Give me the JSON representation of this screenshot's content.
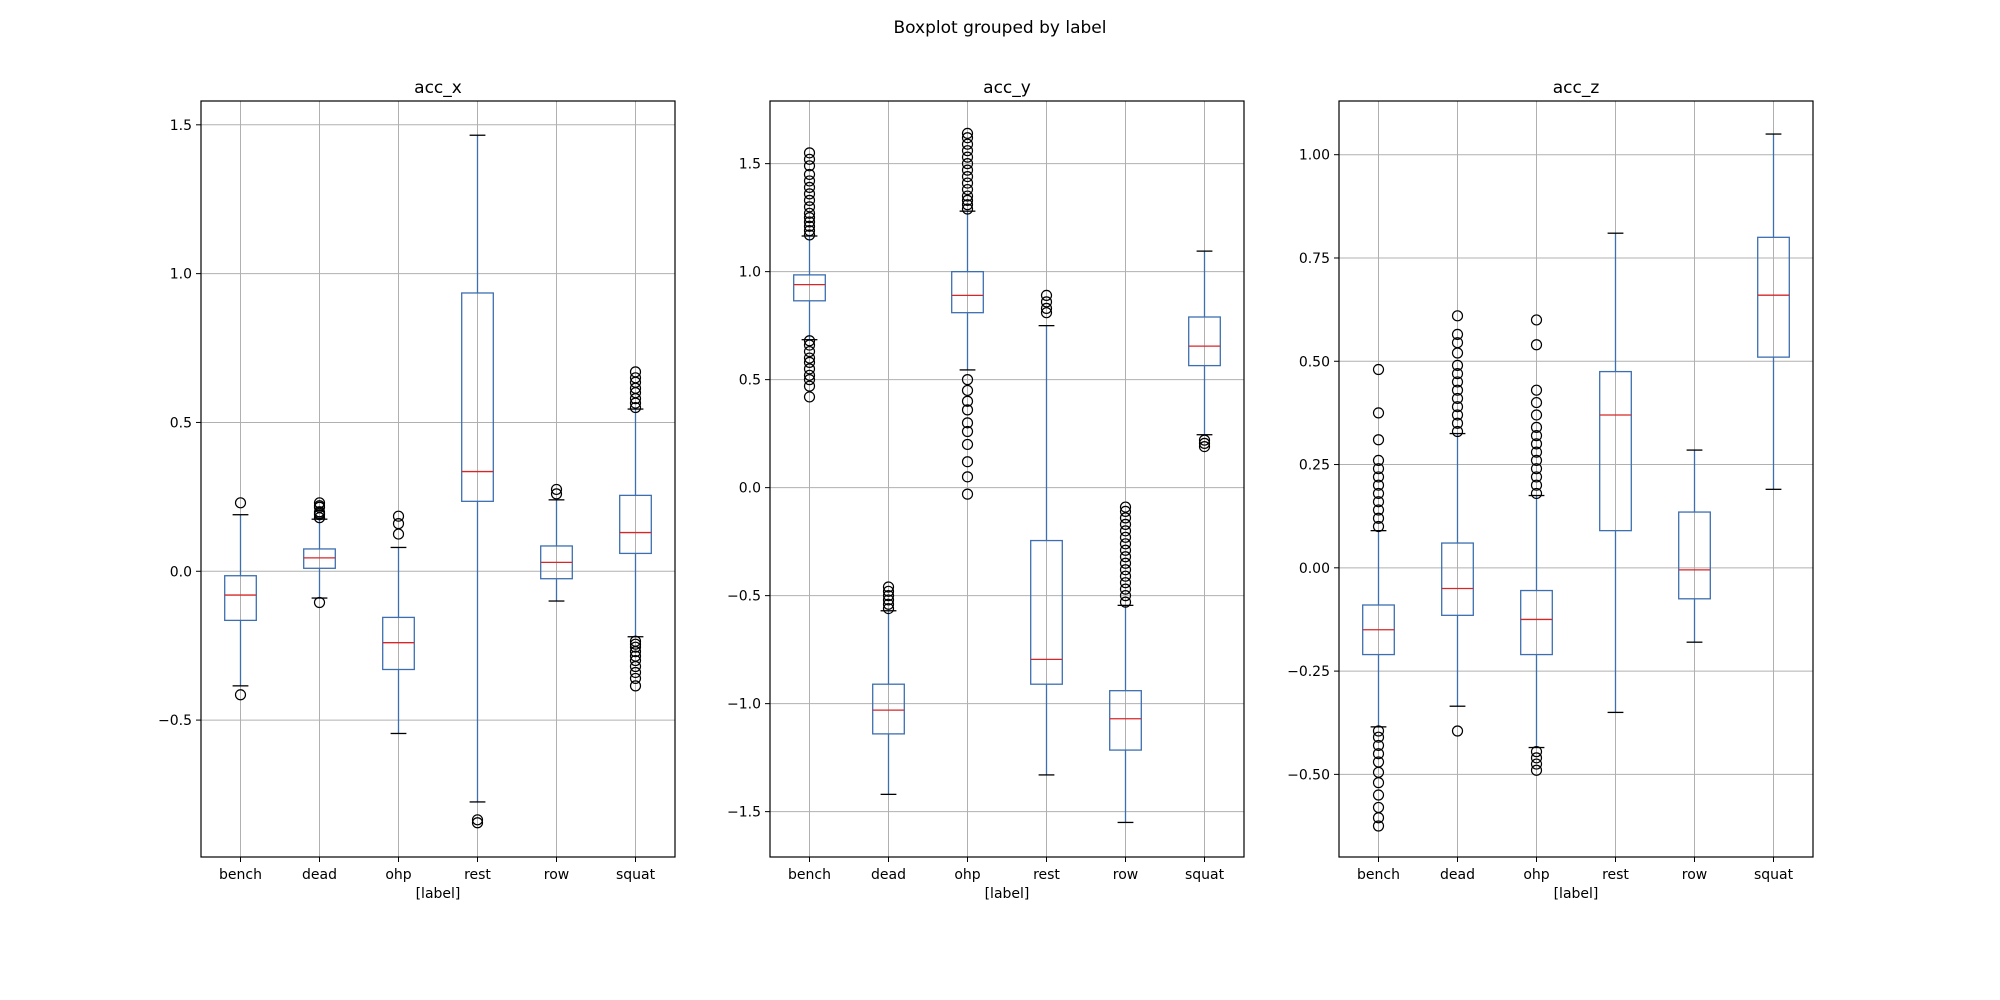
{
  "figure": {
    "suptitle": "Boxplot grouped by label"
  },
  "style": {
    "box_color": "#3d6fb0",
    "median_color": "#d62728",
    "cap_color": "#000000",
    "flier_color": "#000000",
    "grid_color": "#b0b0b0"
  },
  "chart_data": [
    {
      "type": "box",
      "title": "acc_x",
      "xlabel": "[label]",
      "ylabel": "",
      "categories": [
        "bench",
        "dead",
        "ohp",
        "rest",
        "row",
        "squat"
      ],
      "ylim": [
        -0.96,
        1.58
      ],
      "yticks": [
        {
          "value": -0.5,
          "label": "−0.5"
        },
        {
          "value": 0.0,
          "label": "0.0"
        },
        {
          "value": 0.5,
          "label": "0.5"
        },
        {
          "value": 1.0,
          "label": "1.0"
        },
        {
          "value": 1.5,
          "label": "1.5"
        }
      ],
      "grid": true,
      "boxes": [
        {
          "whislo": -0.385,
          "q1": -0.165,
          "med": -0.08,
          "q3": -0.015,
          "whishi": 0.19,
          "fliers": [
            -0.415,
            0.23
          ]
        },
        {
          "whislo": -0.09,
          "q1": 0.01,
          "med": 0.045,
          "q3": 0.075,
          "whishi": 0.175,
          "fliers": [
            -0.105,
            0.18,
            0.19,
            0.195,
            0.2,
            0.215,
            0.22,
            0.23
          ]
        },
        {
          "whislo": -0.545,
          "q1": -0.33,
          "med": -0.24,
          "q3": -0.155,
          "whishi": 0.08,
          "fliers": [
            0.125,
            0.16,
            0.185
          ]
        },
        {
          "whislo": -0.775,
          "q1": 0.235,
          "med": 0.335,
          "q3": 0.935,
          "whishi": 1.465,
          "fliers": [
            -0.835,
            -0.845
          ]
        },
        {
          "whislo": -0.1,
          "q1": -0.025,
          "med": 0.03,
          "q3": 0.085,
          "whishi": 0.24,
          "fliers": [
            0.26,
            0.275
          ]
        },
        {
          "whislo": -0.22,
          "q1": 0.06,
          "med": 0.13,
          "q3": 0.255,
          "whishi": 0.545,
          "fliers": [
            -0.385,
            -0.36,
            -0.34,
            -0.32,
            -0.3,
            -0.285,
            -0.27,
            -0.255,
            -0.245,
            -0.235,
            0.55,
            0.565,
            0.58,
            0.6,
            0.615,
            0.635,
            0.65,
            0.67
          ]
        }
      ]
    },
    {
      "type": "box",
      "title": "acc_y",
      "xlabel": "[label]",
      "ylabel": "",
      "categories": [
        "bench",
        "dead",
        "ohp",
        "rest",
        "row",
        "squat"
      ],
      "ylim": [
        -1.71,
        1.79
      ],
      "yticks": [
        {
          "value": -1.5,
          "label": "−1.5"
        },
        {
          "value": -1.0,
          "label": "−1.0"
        },
        {
          "value": -0.5,
          "label": "−0.5"
        },
        {
          "value": 0.0,
          "label": "0.0"
        },
        {
          "value": 0.5,
          "label": "0.5"
        },
        {
          "value": 1.0,
          "label": "1.0"
        },
        {
          "value": 1.5,
          "label": "1.5"
        }
      ],
      "grid": true,
      "boxes": [
        {
          "whislo": 0.685,
          "q1": 0.865,
          "med": 0.94,
          "q3": 0.985,
          "whishi": 1.165,
          "fliers": [
            0.42,
            0.47,
            0.5,
            0.52,
            0.55,
            0.58,
            0.6,
            0.63,
            0.66,
            0.68,
            1.17,
            1.19,
            1.21,
            1.23,
            1.25,
            1.27,
            1.3,
            1.33,
            1.36,
            1.39,
            1.42,
            1.45,
            1.49,
            1.52,
            1.55
          ]
        },
        {
          "whislo": -1.42,
          "q1": -1.14,
          "med": -1.03,
          "q3": -0.91,
          "whishi": -0.57,
          "fliers": [
            -0.56,
            -0.54,
            -0.52,
            -0.5,
            -0.48,
            -0.46
          ]
        },
        {
          "whislo": 0.545,
          "q1": 0.81,
          "med": 0.89,
          "q3": 1.0,
          "whishi": 1.28,
          "fliers": [
            -0.03,
            0.05,
            0.12,
            0.2,
            0.26,
            0.3,
            0.36,
            0.4,
            0.45,
            0.5,
            1.29,
            1.31,
            1.33,
            1.35,
            1.38,
            1.41,
            1.44,
            1.47,
            1.5,
            1.53,
            1.56,
            1.59,
            1.62,
            1.64
          ]
        },
        {
          "whislo": -1.33,
          "q1": -0.91,
          "med": -0.795,
          "q3": -0.245,
          "whishi": 0.75,
          "fliers": [
            0.81,
            0.83,
            0.86,
            0.89
          ]
        },
        {
          "whislo": -1.55,
          "q1": -1.215,
          "med": -1.07,
          "q3": -0.94,
          "whishi": -0.545,
          "fliers": [
            -0.53,
            -0.5,
            -0.47,
            -0.44,
            -0.41,
            -0.38,
            -0.35,
            -0.32,
            -0.29,
            -0.26,
            -0.23,
            -0.2,
            -0.17,
            -0.14,
            -0.11,
            -0.09
          ]
        },
        {
          "whislo": 0.245,
          "q1": 0.565,
          "med": 0.655,
          "q3": 0.79,
          "whishi": 1.095,
          "fliers": [
            0.19,
            0.205,
            0.22
          ]
        }
      ]
    },
    {
      "type": "box",
      "title": "acc_z",
      "xlabel": "[label]",
      "ylabel": "",
      "categories": [
        "bench",
        "dead",
        "ohp",
        "rest",
        "row",
        "squat"
      ],
      "ylim": [
        -0.7,
        1.13
      ],
      "yticks": [
        {
          "value": -0.5,
          "label": "−0.50"
        },
        {
          "value": -0.25,
          "label": "−0.25"
        },
        {
          "value": 0.0,
          "label": "0.00"
        },
        {
          "value": 0.25,
          "label": "0.25"
        },
        {
          "value": 0.5,
          "label": "0.50"
        },
        {
          "value": 0.75,
          "label": "0.75"
        },
        {
          "value": 1.0,
          "label": "1.00"
        }
      ],
      "grid": true,
      "boxes": [
        {
          "whislo": -0.385,
          "q1": -0.21,
          "med": -0.15,
          "q3": -0.09,
          "whishi": 0.09,
          "fliers": [
            -0.625,
            -0.605,
            -0.58,
            -0.55,
            -0.52,
            -0.495,
            -0.47,
            -0.45,
            -0.43,
            -0.41,
            -0.395,
            0.1,
            0.12,
            0.14,
            0.16,
            0.18,
            0.2,
            0.22,
            0.24,
            0.26,
            0.31,
            0.375,
            0.48
          ]
        },
        {
          "whislo": -0.335,
          "q1": -0.115,
          "med": -0.05,
          "q3": 0.06,
          "whishi": 0.325,
          "fliers": [
            -0.395,
            0.33,
            0.35,
            0.37,
            0.39,
            0.41,
            0.43,
            0.45,
            0.47,
            0.49,
            0.52,
            0.545,
            0.565,
            0.61
          ]
        },
        {
          "whislo": -0.435,
          "q1": -0.21,
          "med": -0.125,
          "q3": -0.055,
          "whishi": 0.175,
          "fliers": [
            -0.49,
            -0.475,
            -0.46,
            -0.445,
            0.18,
            0.2,
            0.22,
            0.24,
            0.26,
            0.28,
            0.3,
            0.32,
            0.34,
            0.37,
            0.4,
            0.43,
            0.54,
            0.6
          ]
        },
        {
          "whislo": -0.35,
          "q1": 0.09,
          "med": 0.37,
          "q3": 0.475,
          "whishi": 0.81,
          "fliers": []
        },
        {
          "whislo": -0.18,
          "q1": -0.075,
          "med": -0.005,
          "q3": 0.135,
          "whishi": 0.285,
          "fliers": []
        },
        {
          "whislo": 0.19,
          "q1": 0.51,
          "med": 0.66,
          "q3": 0.8,
          "whishi": 1.05,
          "fliers": []
        }
      ]
    }
  ]
}
